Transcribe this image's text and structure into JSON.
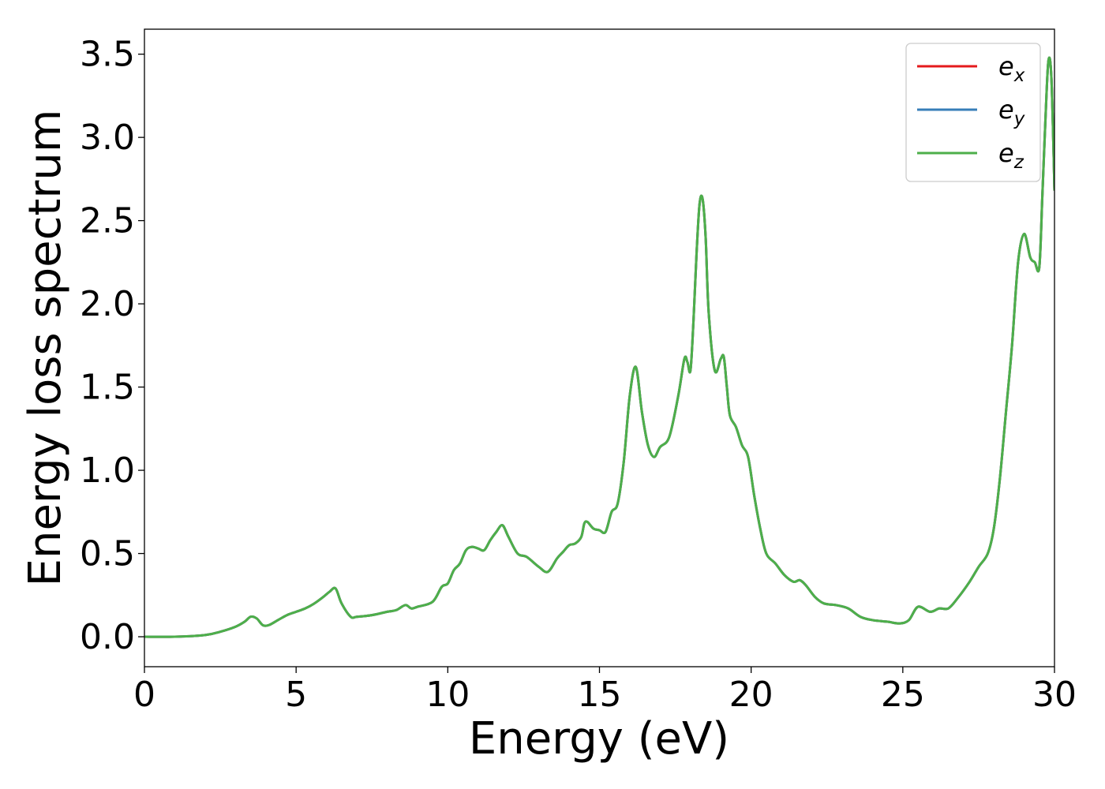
{
  "chart_data": {
    "type": "line",
    "title": "",
    "xlabel": "Energy (eV)",
    "ylabel": "Energy loss spectrum",
    "xlim": [
      0,
      30
    ],
    "ylim": [
      -0.18,
      3.65
    ],
    "xticks": [
      0,
      5,
      10,
      15,
      20,
      25,
      30
    ],
    "xtick_labels": [
      "0",
      "5",
      "10",
      "15",
      "20",
      "25",
      "30"
    ],
    "yticks": [
      0.0,
      0.5,
      1.0,
      1.5,
      2.0,
      2.5,
      3.0,
      3.5
    ],
    "ytick_labels": [
      "0.0",
      "0.5",
      "1.0",
      "1.5",
      "2.0",
      "2.5",
      "3.0",
      "3.5"
    ],
    "grid": false,
    "legend_position": "top-right",
    "series": [
      {
        "name": "e_x",
        "legend_base": "e",
        "legend_sub": "x",
        "color": "#e41a1c",
        "x": [
          0,
          1,
          2,
          2.5,
          3,
          3.3,
          3.5,
          3.7,
          3.9,
          4.1,
          4.4,
          4.7,
          5.0,
          5.3,
          5.6,
          5.9,
          6.1,
          6.3,
          6.5,
          6.8,
          7.0,
          7.5,
          8.0,
          8.3,
          8.6,
          8.8,
          9.0,
          9.5,
          9.8,
          10.0,
          10.2,
          10.4,
          10.6,
          10.8,
          11.0,
          11.2,
          11.4,
          11.6,
          11.8,
          12.0,
          12.3,
          12.6,
          13.0,
          13.3,
          13.6,
          13.8,
          14.0,
          14.2,
          14.4,
          14.5,
          14.6,
          14.8,
          15.0,
          15.2,
          15.4,
          15.6,
          15.8,
          16.0,
          16.2,
          16.4,
          16.6,
          16.8,
          17.0,
          17.3,
          17.6,
          17.8,
          17.9,
          18.0,
          18.1,
          18.2,
          18.3,
          18.4,
          18.5,
          18.6,
          18.8,
          19.0,
          19.1,
          19.2,
          19.3,
          19.5,
          19.7,
          19.9,
          20.1,
          20.3,
          20.5,
          20.8,
          21.1,
          21.4,
          21.6,
          21.8,
          22.1,
          22.4,
          22.8,
          23.2,
          23.6,
          24.0,
          24.5,
          24.9,
          25.2,
          25.5,
          25.9,
          26.2,
          26.5,
          26.8,
          27.2,
          27.5,
          27.8,
          28.0,
          28.2,
          28.4,
          28.6,
          28.8,
          29.0,
          29.2,
          29.35,
          29.5,
          29.6,
          29.7,
          29.8,
          29.9,
          30.0
        ],
        "y": [
          0.0,
          0.0,
          0.01,
          0.03,
          0.06,
          0.09,
          0.12,
          0.11,
          0.07,
          0.07,
          0.1,
          0.13,
          0.15,
          0.17,
          0.2,
          0.24,
          0.27,
          0.29,
          0.2,
          0.12,
          0.12,
          0.13,
          0.15,
          0.16,
          0.19,
          0.17,
          0.18,
          0.21,
          0.3,
          0.32,
          0.4,
          0.44,
          0.52,
          0.54,
          0.53,
          0.52,
          0.58,
          0.63,
          0.67,
          0.6,
          0.5,
          0.48,
          0.42,
          0.39,
          0.47,
          0.51,
          0.55,
          0.56,
          0.6,
          0.68,
          0.69,
          0.65,
          0.64,
          0.63,
          0.75,
          0.8,
          1.05,
          1.45,
          1.62,
          1.35,
          1.15,
          1.08,
          1.14,
          1.2,
          1.45,
          1.67,
          1.65,
          1.6,
          1.9,
          2.3,
          2.6,
          2.63,
          2.4,
          1.95,
          1.6,
          1.67,
          1.68,
          1.5,
          1.33,
          1.26,
          1.15,
          1.08,
          0.85,
          0.65,
          0.5,
          0.44,
          0.37,
          0.33,
          0.34,
          0.31,
          0.24,
          0.2,
          0.19,
          0.17,
          0.12,
          0.1,
          0.09,
          0.08,
          0.1,
          0.18,
          0.15,
          0.17,
          0.17,
          0.23,
          0.33,
          0.42,
          0.5,
          0.65,
          0.95,
          1.35,
          1.75,
          2.25,
          2.42,
          2.28,
          2.25,
          2.22,
          2.65,
          3.1,
          3.46,
          3.35,
          2.68
        ]
      },
      {
        "name": "e_y",
        "legend_base": "e",
        "legend_sub": "y",
        "color": "#377eb8",
        "x": [
          0,
          1,
          2,
          2.5,
          3,
          3.3,
          3.5,
          3.7,
          3.9,
          4.1,
          4.4,
          4.7,
          5.0,
          5.3,
          5.6,
          5.9,
          6.1,
          6.3,
          6.5,
          6.8,
          7.0,
          7.5,
          8.0,
          8.3,
          8.6,
          8.8,
          9.0,
          9.5,
          9.8,
          10.0,
          10.2,
          10.4,
          10.6,
          10.8,
          11.0,
          11.2,
          11.4,
          11.6,
          11.8,
          12.0,
          12.3,
          12.6,
          13.0,
          13.3,
          13.6,
          13.8,
          14.0,
          14.2,
          14.4,
          14.5,
          14.6,
          14.8,
          15.0,
          15.2,
          15.4,
          15.6,
          15.8,
          16.0,
          16.2,
          16.4,
          16.6,
          16.8,
          17.0,
          17.3,
          17.6,
          17.8,
          17.9,
          18.0,
          18.1,
          18.2,
          18.3,
          18.4,
          18.5,
          18.6,
          18.8,
          19.0,
          19.1,
          19.2,
          19.3,
          19.5,
          19.7,
          19.9,
          20.1,
          20.3,
          20.5,
          20.8,
          21.1,
          21.4,
          21.6,
          21.8,
          22.1,
          22.4,
          22.8,
          23.2,
          23.6,
          24.0,
          24.5,
          24.9,
          25.2,
          25.5,
          25.9,
          26.2,
          26.5,
          26.8,
          27.2,
          27.5,
          27.8,
          28.0,
          28.2,
          28.4,
          28.6,
          28.8,
          29.0,
          29.2,
          29.35,
          29.5,
          29.6,
          29.7,
          29.8,
          29.9,
          30.0
        ],
        "y": [
          0.0,
          0.0,
          0.01,
          0.03,
          0.06,
          0.09,
          0.12,
          0.11,
          0.07,
          0.07,
          0.1,
          0.13,
          0.15,
          0.17,
          0.2,
          0.24,
          0.27,
          0.29,
          0.2,
          0.12,
          0.12,
          0.13,
          0.15,
          0.16,
          0.19,
          0.17,
          0.18,
          0.21,
          0.3,
          0.32,
          0.4,
          0.44,
          0.52,
          0.54,
          0.53,
          0.52,
          0.58,
          0.63,
          0.67,
          0.6,
          0.5,
          0.48,
          0.42,
          0.39,
          0.47,
          0.51,
          0.55,
          0.56,
          0.6,
          0.68,
          0.69,
          0.65,
          0.64,
          0.63,
          0.75,
          0.8,
          1.05,
          1.45,
          1.62,
          1.35,
          1.15,
          1.08,
          1.14,
          1.2,
          1.45,
          1.67,
          1.65,
          1.6,
          1.9,
          2.3,
          2.6,
          2.63,
          2.4,
          1.95,
          1.6,
          1.67,
          1.68,
          1.5,
          1.33,
          1.26,
          1.15,
          1.08,
          0.85,
          0.65,
          0.5,
          0.44,
          0.37,
          0.33,
          0.34,
          0.31,
          0.24,
          0.2,
          0.19,
          0.17,
          0.12,
          0.1,
          0.09,
          0.08,
          0.1,
          0.18,
          0.15,
          0.17,
          0.17,
          0.23,
          0.33,
          0.42,
          0.5,
          0.65,
          0.95,
          1.35,
          1.75,
          2.25,
          2.42,
          2.28,
          2.25,
          2.22,
          2.65,
          3.1,
          3.46,
          3.35,
          2.68
        ]
      },
      {
        "name": "e_z",
        "legend_base": "e",
        "legend_sub": "z",
        "color": "#4daf4a",
        "x": [
          0,
          1,
          2,
          2.5,
          3,
          3.3,
          3.5,
          3.7,
          3.9,
          4.1,
          4.4,
          4.7,
          5.0,
          5.3,
          5.6,
          5.9,
          6.1,
          6.3,
          6.5,
          6.8,
          7.0,
          7.5,
          8.0,
          8.3,
          8.6,
          8.8,
          9.0,
          9.5,
          9.8,
          10.0,
          10.2,
          10.4,
          10.6,
          10.8,
          11.0,
          11.2,
          11.4,
          11.6,
          11.8,
          12.0,
          12.3,
          12.6,
          13.0,
          13.3,
          13.6,
          13.8,
          14.0,
          14.2,
          14.4,
          14.5,
          14.6,
          14.8,
          15.0,
          15.2,
          15.4,
          15.6,
          15.8,
          16.0,
          16.2,
          16.4,
          16.6,
          16.8,
          17.0,
          17.3,
          17.6,
          17.8,
          17.9,
          18.0,
          18.1,
          18.2,
          18.3,
          18.4,
          18.5,
          18.6,
          18.8,
          19.0,
          19.1,
          19.2,
          19.3,
          19.5,
          19.7,
          19.9,
          20.1,
          20.3,
          20.5,
          20.8,
          21.1,
          21.4,
          21.6,
          21.8,
          22.1,
          22.4,
          22.8,
          23.2,
          23.6,
          24.0,
          24.5,
          24.9,
          25.2,
          25.5,
          25.9,
          26.2,
          26.5,
          26.8,
          27.2,
          27.5,
          27.8,
          28.0,
          28.2,
          28.4,
          28.6,
          28.8,
          29.0,
          29.2,
          29.35,
          29.5,
          29.6,
          29.7,
          29.8,
          29.9,
          30.0
        ],
        "y": [
          0.0,
          0.0,
          0.01,
          0.03,
          0.06,
          0.09,
          0.12,
          0.11,
          0.07,
          0.07,
          0.1,
          0.13,
          0.15,
          0.17,
          0.2,
          0.24,
          0.27,
          0.29,
          0.2,
          0.12,
          0.12,
          0.13,
          0.15,
          0.16,
          0.19,
          0.17,
          0.18,
          0.21,
          0.3,
          0.32,
          0.4,
          0.44,
          0.52,
          0.54,
          0.53,
          0.52,
          0.58,
          0.63,
          0.67,
          0.6,
          0.5,
          0.48,
          0.42,
          0.39,
          0.47,
          0.51,
          0.55,
          0.56,
          0.6,
          0.68,
          0.69,
          0.65,
          0.64,
          0.63,
          0.75,
          0.8,
          1.05,
          1.45,
          1.62,
          1.35,
          1.15,
          1.08,
          1.14,
          1.2,
          1.45,
          1.67,
          1.65,
          1.6,
          1.9,
          2.3,
          2.6,
          2.63,
          2.4,
          1.95,
          1.6,
          1.67,
          1.68,
          1.5,
          1.33,
          1.26,
          1.15,
          1.08,
          0.85,
          0.65,
          0.5,
          0.44,
          0.37,
          0.33,
          0.34,
          0.31,
          0.24,
          0.2,
          0.19,
          0.17,
          0.12,
          0.1,
          0.09,
          0.08,
          0.1,
          0.18,
          0.15,
          0.17,
          0.17,
          0.23,
          0.33,
          0.42,
          0.5,
          0.65,
          0.95,
          1.35,
          1.75,
          2.25,
          2.42,
          2.28,
          2.25,
          2.22,
          2.65,
          3.1,
          3.46,
          3.35,
          2.68
        ]
      }
    ]
  }
}
